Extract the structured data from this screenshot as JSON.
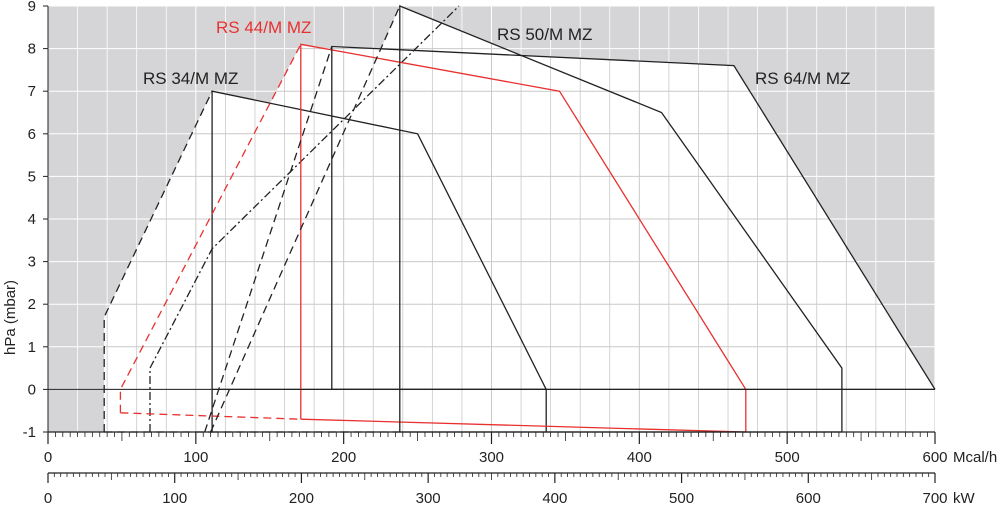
{
  "chart_data": {
    "type": "line",
    "ylabel": "hPa (mbar)",
    "x_unit_primary": "Mcal/h",
    "x_unit_secondary": "kW",
    "xlim": [
      0,
      600
    ],
    "x2lim": [
      0,
      700
    ],
    "ylim": [
      -1,
      9
    ],
    "x_ticks": [
      0,
      100,
      200,
      300,
      400,
      500,
      600
    ],
    "x2_ticks": [
      0,
      100,
      200,
      300,
      400,
      500,
      600,
      700
    ],
    "y_ticks": [
      -1,
      0,
      1,
      2,
      3,
      4,
      5,
      6,
      7,
      8,
      9
    ],
    "grid": true,
    "colors": {
      "shade": "#d5d5d7",
      "field": "#ffffff",
      "grid_on_shade": "#ffffff",
      "grid_on_field": "#c9c9c9",
      "dark_series": "#222222",
      "red_series": "#e8312f"
    },
    "series": [
      {
        "name": "RS 34/M MZ",
        "color": "#222222",
        "envelope": [
          [
            111,
            -1
          ],
          [
            111,
            7
          ],
          [
            250,
            6
          ],
          [
            337,
            0
          ],
          [
            337,
            -1
          ]
        ],
        "envelope_closed": [
          [
            111,
            0
          ],
          [
            337,
            0
          ]
        ],
        "ignition_dashed": [
          [
            38,
            -1
          ],
          [
            38,
            1.7
          ],
          [
            111,
            7
          ]
        ],
        "ignition_dashdot": [
          [
            69,
            -1
          ],
          [
            69,
            0.5
          ],
          [
            111,
            3.3
          ],
          [
            278,
            9.0
          ]
        ],
        "bottom_dashed": [
          [
            38,
            -1
          ],
          [
            111,
            -1
          ]
        ]
      },
      {
        "name": "RS 44/M MZ",
        "color": "#e8312f",
        "envelope": [
          [
            171,
            -0.7
          ],
          [
            171,
            8.1
          ],
          [
            346,
            7
          ],
          [
            472,
            0
          ],
          [
            472,
            -1
          ]
        ],
        "envelope_closed": [
          [
            171,
            -0.7
          ],
          [
            472,
            -1
          ]
        ],
        "ignition_dashed": [
          [
            49,
            -0.55
          ],
          [
            49,
            0
          ],
          [
            171,
            8.1
          ]
        ],
        "bottom_dashed": [
          [
            49,
            -0.55
          ],
          [
            171,
            -0.7
          ]
        ]
      },
      {
        "name": "RS 50/M MZ",
        "color": "#222222",
        "envelope": [
          [
            238,
            -1
          ],
          [
            238,
            9
          ],
          [
            415,
            6.5
          ],
          [
            537,
            0.5
          ],
          [
            537,
            -1
          ]
        ],
        "envelope_closed": [
          [
            238,
            -1
          ],
          [
            537,
            -1
          ]
        ],
        "ignition_dashed": [
          [
            110,
            -1
          ],
          [
            238,
            9
          ]
        ],
        "bottom_dashed": [
          [
            110,
            -1
          ],
          [
            238,
            -1
          ]
        ]
      },
      {
        "name": "RS 64/M MZ",
        "color": "#222222",
        "envelope": [
          [
            192,
            0
          ],
          [
            192,
            8.05
          ],
          [
            464,
            7.6
          ],
          [
            600,
            0
          ]
        ],
        "envelope_closed": [
          [
            192,
            0
          ],
          [
            600,
            0
          ]
        ],
        "ignition_dashed": [
          [
            106,
            -1
          ],
          [
            192,
            8.05
          ]
        ]
      }
    ]
  },
  "labels": {
    "rs34": "RS 34/M MZ",
    "rs44": "RS 44/M MZ",
    "rs50": "RS 50/M MZ",
    "rs64": "RS 64/M MZ",
    "ylabel": "hPa (mbar)",
    "x_unit_primary": "Mcal/h",
    "x_unit_secondary": "kW"
  }
}
